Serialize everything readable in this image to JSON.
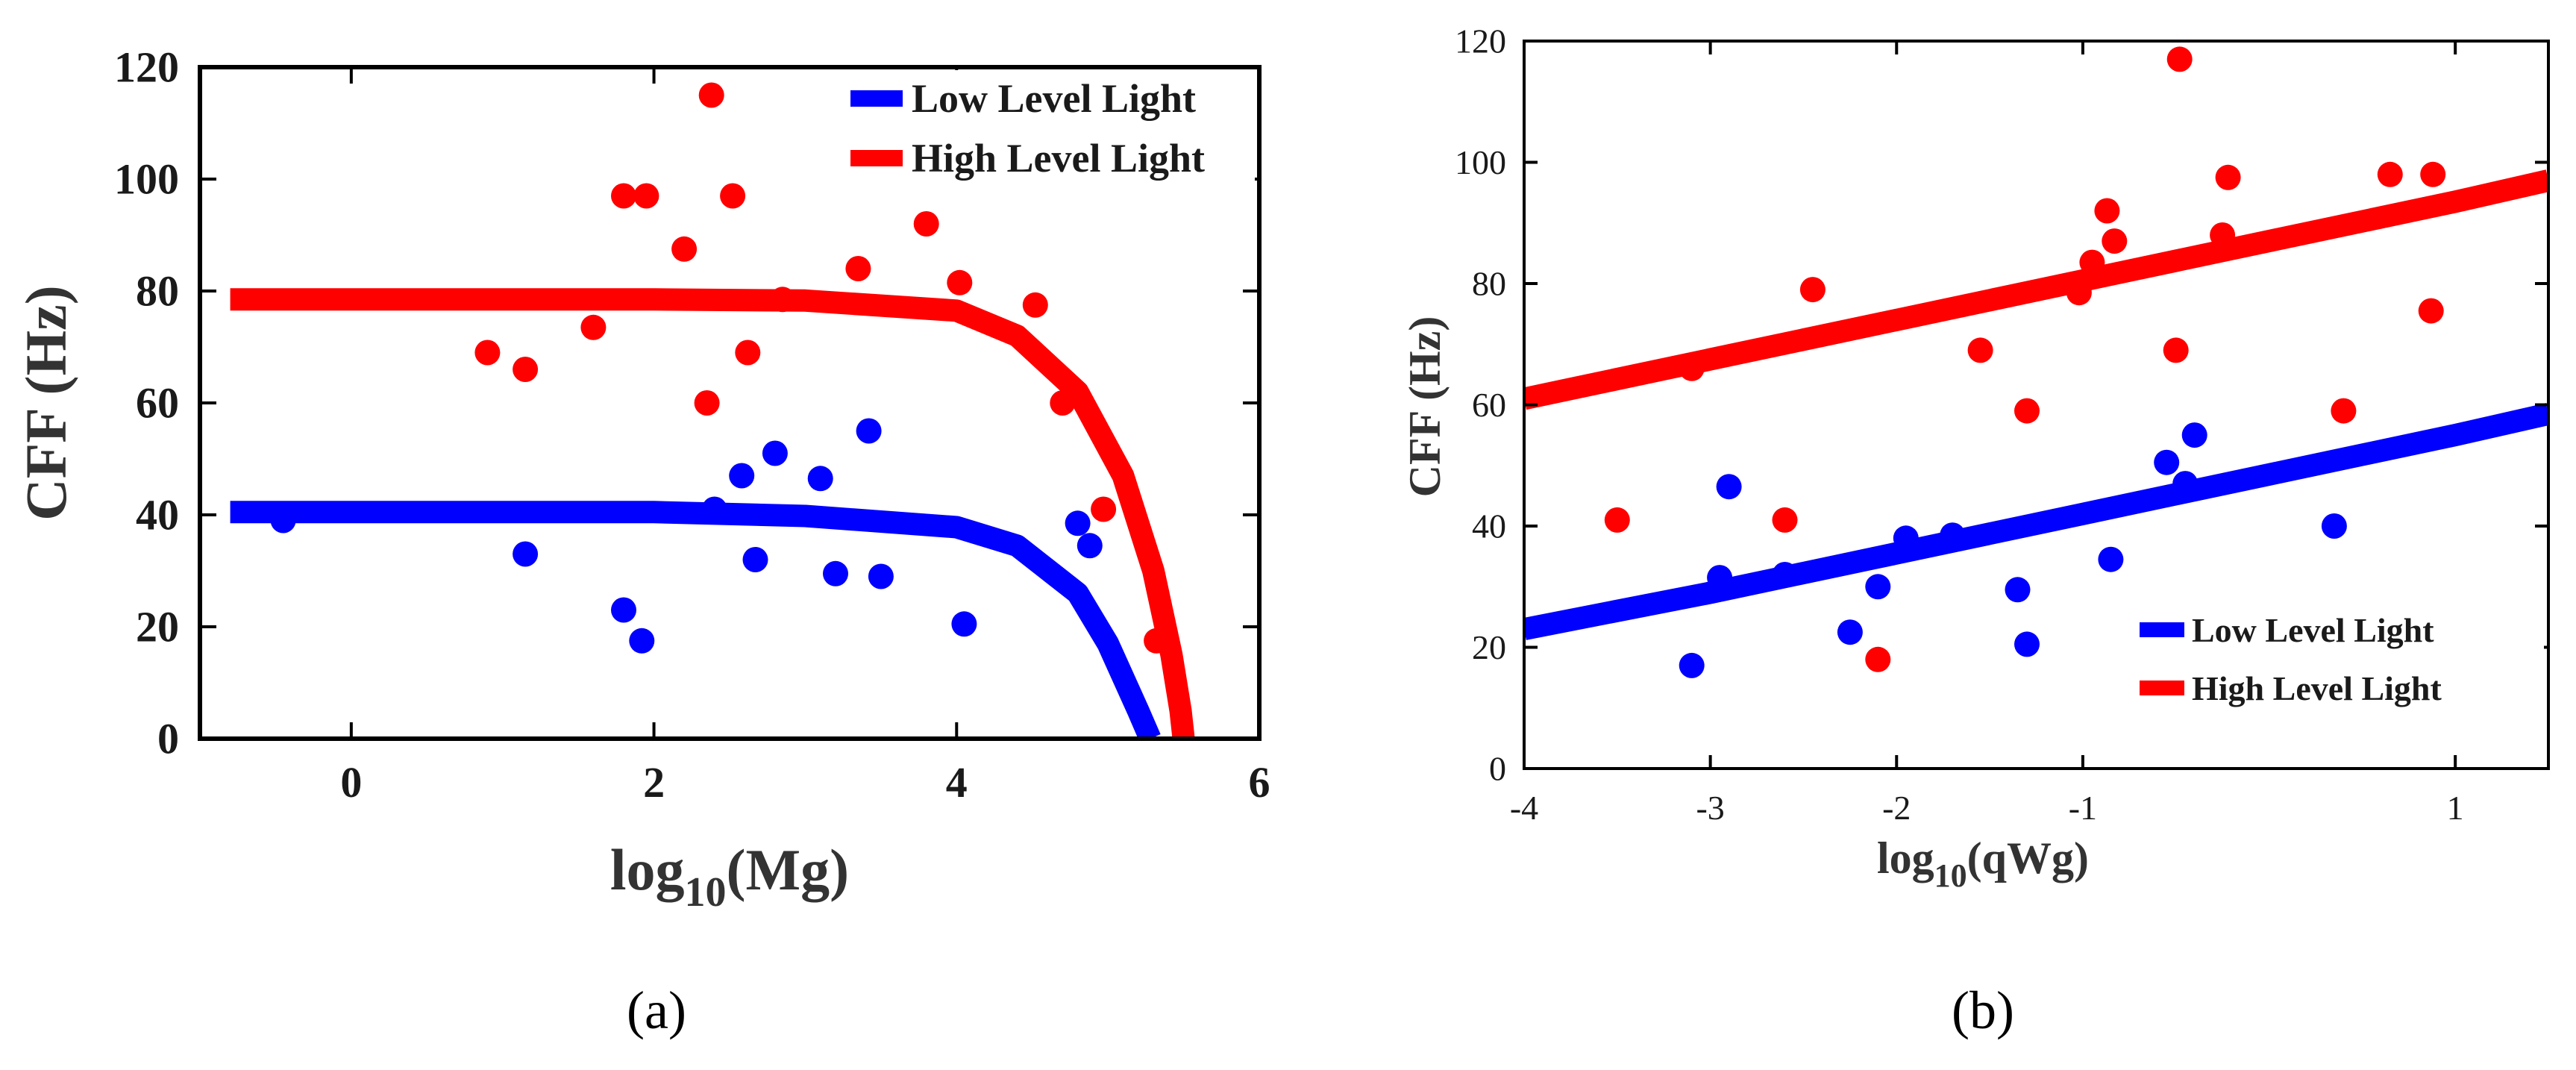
{
  "chart_data": [
    {
      "type": "scatter",
      "panel_label": "(a)",
      "title": "",
      "xlabel": {
        "base": "log",
        "sub": "10",
        "rest": "(Mg)"
      },
      "ylabel": "CFF (Hz)",
      "xlim": [
        -1,
        6
      ],
      "ylim": [
        0,
        120
      ],
      "xticks": [
        0,
        2,
        4,
        6
      ],
      "yticks": [
        0,
        20,
        40,
        60,
        80,
        100,
        120
      ],
      "legend_position": "top-right",
      "series": [
        {
          "name": "Low Level Light",
          "color": "#0000ff",
          "points": [
            [
              -0.45,
              39
            ],
            [
              1.15,
              33
            ],
            [
              1.8,
              23
            ],
            [
              1.92,
              17.5
            ],
            [
              2.4,
              41
            ],
            [
              2.58,
              47
            ],
            [
              2.67,
              32
            ],
            [
              2.8,
              51
            ],
            [
              3.1,
              46.5
            ],
            [
              3.2,
              29.5
            ],
            [
              3.42,
              55
            ],
            [
              3.5,
              29
            ],
            [
              4.05,
              20.5
            ],
            [
              4.8,
              38.5
            ],
            [
              4.88,
              34.5
            ]
          ],
          "fit": [
            [
              -0.8,
              40.5
            ],
            [
              2.0,
              40.5
            ],
            [
              3.0,
              39.8
            ],
            [
              4.0,
              37.8
            ],
            [
              4.4,
              34.5
            ],
            [
              4.8,
              26
            ],
            [
              5.0,
              17
            ],
            [
              5.2,
              5
            ],
            [
              5.28,
              0
            ]
          ]
        },
        {
          "name": "High Level Light",
          "color": "#ff0000",
          "points": [
            [
              0.9,
              69
            ],
            [
              1.15,
              66
            ],
            [
              1.6,
              73.5
            ],
            [
              1.8,
              97
            ],
            [
              1.95,
              97
            ],
            [
              2.2,
              87.5
            ],
            [
              2.35,
              60
            ],
            [
              2.38,
              115
            ],
            [
              2.52,
              97
            ],
            [
              2.62,
              69
            ],
            [
              2.85,
              78.5
            ],
            [
              3.35,
              84
            ],
            [
              3.8,
              92
            ],
            [
              4.02,
              81.5
            ],
            [
              4.52,
              77.5
            ],
            [
              4.7,
              60
            ],
            [
              4.97,
              41
            ],
            [
              5.32,
              17.5
            ]
          ],
          "fit": [
            [
              -0.8,
              78.5
            ],
            [
              2.0,
              78.5
            ],
            [
              3.0,
              78.3
            ],
            [
              4.0,
              76.5
            ],
            [
              4.4,
              72
            ],
            [
              4.8,
              62
            ],
            [
              5.1,
              47
            ],
            [
              5.3,
              30
            ],
            [
              5.42,
              15
            ],
            [
              5.48,
              5
            ],
            [
              5.5,
              0
            ]
          ]
        }
      ]
    },
    {
      "type": "scatter",
      "panel_label": "(b)",
      "title": "",
      "xlabel": {
        "base": "log",
        "sub": "10",
        "rest": "(qWg)"
      },
      "ylabel": "CFF (Hz)",
      "xlim": [
        -4,
        1.5
      ],
      "ylim": [
        0,
        120
      ],
      "xticks": [
        -4,
        -3,
        -2,
        -1,
        1
      ],
      "yticks": [
        0,
        20,
        40,
        60,
        80,
        100,
        120
      ],
      "legend_position": "bottom-right",
      "series": [
        {
          "name": "Low Level Light",
          "color": "#0000ff",
          "points": [
            [
              -3.1,
              17
            ],
            [
              -2.95,
              31.5
            ],
            [
              -2.9,
              46.5
            ],
            [
              -2.6,
              32
            ],
            [
              -2.25,
              22.5
            ],
            [
              -2.1,
              30
            ],
            [
              -1.95,
              38
            ],
            [
              -1.7,
              38.5
            ],
            [
              -1.35,
              29.5
            ],
            [
              -1.3,
              20.5
            ],
            [
              -0.85,
              34.5
            ],
            [
              -0.55,
              50.5
            ],
            [
              -0.45,
              47
            ],
            [
              -0.4,
              55
            ],
            [
              0.35,
              40
            ]
          ],
          "fit": [
            [
              -4.0,
              23
            ],
            [
              -3.0,
              29
            ],
            [
              -2.0,
              35.5
            ],
            [
              -1.0,
              42
            ],
            [
              0.0,
              48.5
            ],
            [
              1.0,
              55
            ],
            [
              1.5,
              58.5
            ]
          ]
        },
        {
          "name": "High Level Light",
          "color": "#ff0000",
          "points": [
            [
              -3.5,
              41
            ],
            [
              -3.1,
              66
            ],
            [
              -2.6,
              41
            ],
            [
              -2.45,
              79
            ],
            [
              -2.1,
              18
            ],
            [
              -1.55,
              69
            ],
            [
              -1.3,
              59
            ],
            [
              -1.02,
              78.5
            ],
            [
              -0.95,
              83.5
            ],
            [
              -0.87,
              92
            ],
            [
              -0.83,
              87
            ],
            [
              -0.5,
              69
            ],
            [
              -0.48,
              117
            ],
            [
              -0.25,
              88
            ],
            [
              -0.22,
              97.5
            ],
            [
              0.4,
              59
            ],
            [
              0.65,
              98
            ],
            [
              0.88,
              98
            ],
            [
              0.87,
              75.5
            ]
          ],
          "fit": [
            [
              -4.0,
              61
            ],
            [
              -3.0,
              67.5
            ],
            [
              -2.0,
              74
            ],
            [
              -1.0,
              80.5
            ],
            [
              0.0,
              87
            ],
            [
              1.0,
              93.5
            ],
            [
              1.5,
              97
            ]
          ]
        }
      ]
    }
  ]
}
